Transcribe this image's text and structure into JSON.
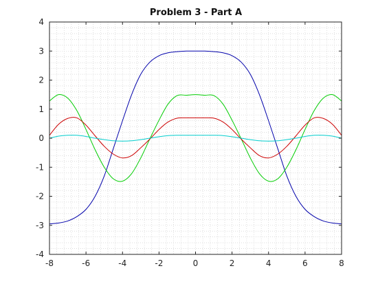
{
  "chart_data": {
    "type": "line",
    "title": "Problem 3 - Part A",
    "xlabel": "",
    "ylabel": "",
    "xlim": [
      -8,
      8
    ],
    "ylim": [
      -4,
      4
    ],
    "xticks": [
      -8,
      -6,
      -4,
      -2,
      0,
      2,
      4,
      6,
      8
    ],
    "yticks": [
      -4,
      -3,
      -2,
      -1,
      0,
      1,
      2,
      3,
      4
    ],
    "grid": true,
    "grid_style": "dotted",
    "legend": false,
    "x": [
      -8,
      -7.5,
      -7,
      -6.5,
      -6,
      -5.5,
      -5,
      -4.5,
      -4,
      -3.5,
      -3,
      -2.5,
      -2,
      -1.5,
      -1,
      -0.5,
      0,
      0.5,
      1,
      1.5,
      2,
      2.5,
      3,
      3.5,
      4,
      4.5,
      5,
      5.5,
      6,
      6.5,
      7,
      7.5,
      8
    ],
    "series": [
      {
        "color": "#0000aa",
        "values": [
          -2.95,
          -2.92,
          -2.85,
          -2.7,
          -2.45,
          -2.0,
          -1.3,
          -0.35,
          0.6,
          1.5,
          2.2,
          2.62,
          2.84,
          2.94,
          2.98,
          3.0,
          3.0,
          3.0,
          2.98,
          2.94,
          2.84,
          2.62,
          2.2,
          1.5,
          0.6,
          -0.35,
          -1.3,
          -2.0,
          -2.45,
          -2.7,
          -2.85,
          -2.92,
          -2.95
        ]
      },
      {
        "color": "#00cc00",
        "values": [
          1.28,
          1.5,
          1.38,
          0.95,
          0.3,
          -0.4,
          -1.0,
          -1.4,
          -1.48,
          -1.22,
          -0.68,
          -0.02,
          0.62,
          1.18,
          1.47,
          1.48,
          1.5,
          1.48,
          1.47,
          1.18,
          0.62,
          -0.02,
          -0.68,
          -1.22,
          -1.48,
          -1.4,
          -1.0,
          -0.4,
          0.3,
          0.95,
          1.38,
          1.5,
          1.28
        ]
      },
      {
        "color": "#cc0000",
        "values": [
          0.1,
          0.48,
          0.68,
          0.7,
          0.45,
          0.08,
          -0.28,
          -0.55,
          -0.68,
          -0.6,
          -0.33,
          -0.03,
          0.3,
          0.56,
          0.69,
          0.7,
          0.7,
          0.7,
          0.69,
          0.56,
          0.3,
          -0.03,
          -0.33,
          -0.6,
          -0.68,
          -0.55,
          -0.28,
          0.08,
          0.45,
          0.7,
          0.68,
          0.48,
          0.1
        ]
      },
      {
        "color": "#00cccc",
        "values": [
          0.0,
          0.07,
          0.1,
          0.1,
          0.06,
          0.0,
          -0.05,
          -0.09,
          -0.1,
          -0.09,
          -0.05,
          0.0,
          0.05,
          0.09,
          0.1,
          0.1,
          0.1,
          0.1,
          0.1,
          0.09,
          0.05,
          0.0,
          -0.05,
          -0.09,
          -0.1,
          -0.09,
          -0.05,
          0.0,
          0.06,
          0.1,
          0.1,
          0.07,
          0.0
        ]
      }
    ]
  }
}
